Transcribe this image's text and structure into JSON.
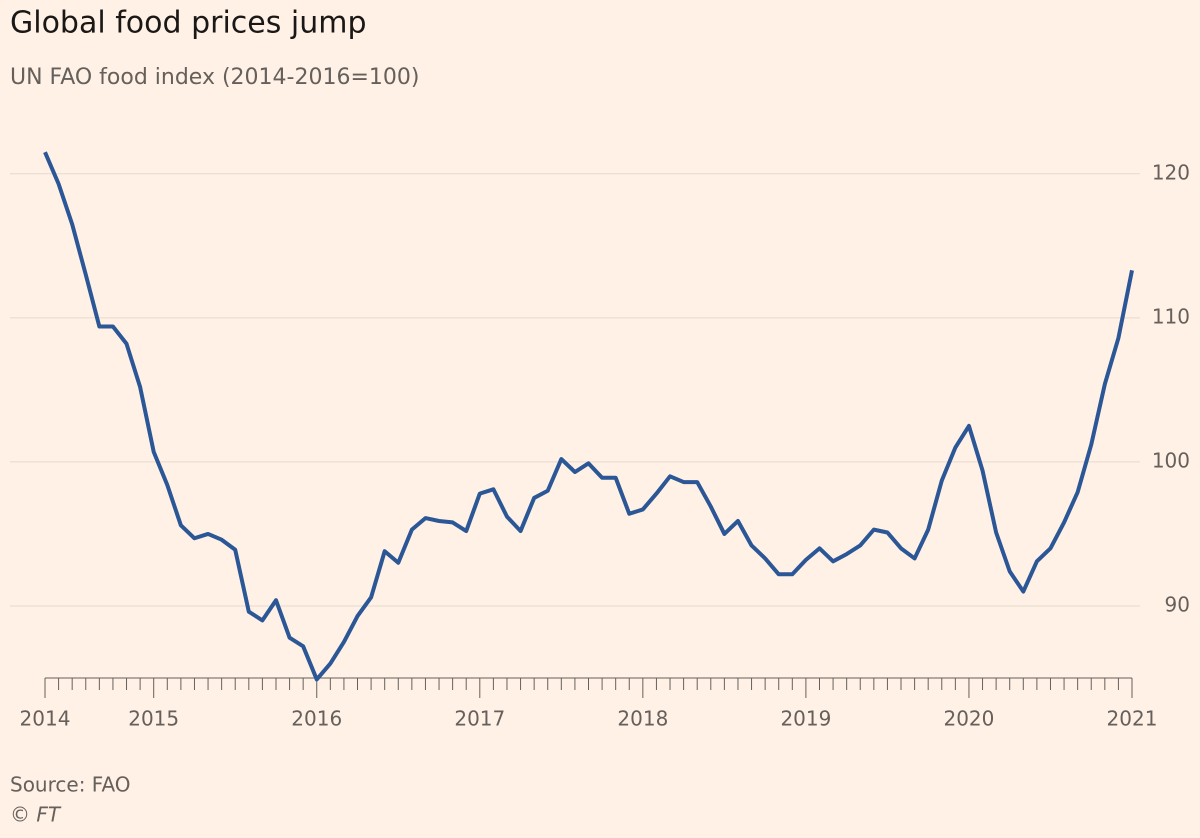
{
  "chart_data": {
    "type": "line",
    "title": "Global food prices jump",
    "subtitle": "UN FAO food index (2014-2016=100)",
    "source": "Source: FAO",
    "credit": "© FT",
    "categories": [
      "2014",
      null,
      null,
      null,
      null,
      null,
      null,
      null,
      "2015",
      null,
      null,
      null,
      null,
      null,
      null,
      null,
      null,
      null,
      null,
      null,
      "2016",
      null,
      null,
      null,
      null,
      null,
      null,
      null,
      null,
      null,
      null,
      null,
      "2017",
      null,
      null,
      null,
      null,
      null,
      null,
      null,
      null,
      null,
      null,
      null,
      "2018",
      null,
      null,
      null,
      null,
      null,
      null,
      null,
      null,
      null,
      null,
      null,
      "2019",
      null,
      null,
      null,
      null,
      null,
      null,
      null,
      null,
      null,
      null,
      null,
      "2020",
      null,
      null,
      null,
      null,
      null,
      null,
      null,
      null,
      null,
      null,
      null,
      "2021"
    ],
    "series": [
      {
        "name": "FAO food index",
        "color": "#2b5797",
        "values": [
          121.5,
          119.3,
          116.5,
          113,
          109.4,
          109.4,
          108.2,
          105.2,
          100.7,
          98.4,
          95.6,
          94.7,
          95.0,
          94.6,
          93.9,
          89.6,
          89.0,
          90.4,
          87.8,
          87.2,
          84.9,
          86.0,
          87.5,
          89.3,
          90.6,
          93.8,
          93.0,
          95.3,
          96.1,
          95.9,
          95.8,
          95.2,
          97.8,
          98.1,
          96.2,
          95.2,
          97.5,
          98.0,
          100.2,
          99.3,
          99.9,
          98.9,
          98.9,
          96.4,
          96.7,
          97.8,
          99.0,
          98.6,
          98.6,
          96.9,
          95.0,
          95.9,
          94.2,
          93.3,
          92.2,
          92.2,
          93.2,
          94.0,
          93.1,
          93.6,
          94.2,
          95.3,
          95.1,
          94.0,
          93.3,
          95.3,
          98.7,
          101.0,
          102.5,
          99.4,
          95.1,
          92.4,
          91.0,
          93.1,
          94.0,
          95.8,
          97.9,
          101.2,
          105.4,
          108.6,
          113.3
        ]
      }
    ],
    "ylim": [
      85,
      122
    ],
    "yticks": [
      90,
      100,
      110,
      120
    ],
    "grid": true
  }
}
